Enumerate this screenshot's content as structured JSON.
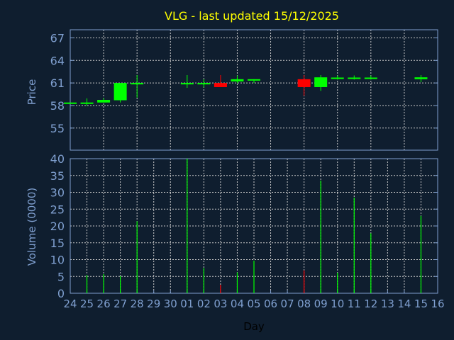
{
  "chart_data": {
    "type": "candlestick",
    "title": "VLG - last updated 15/12/2025",
    "xlabel": "Day",
    "x_tick_labels": [
      "24",
      "25",
      "26",
      "27",
      "28",
      "29",
      "30",
      "01",
      "02",
      "03",
      "04",
      "05",
      "06",
      "07",
      "08",
      "09",
      "10",
      "11",
      "12",
      "13",
      "14",
      "15",
      "16"
    ],
    "price_panel": {
      "ylabel": "Price",
      "ylim": [
        52.06,
        68.08
      ],
      "yticks": [
        55,
        58,
        61,
        64,
        67
      ],
      "grid": true,
      "candles": [
        {
          "day": "24",
          "open": 58.4,
          "high": 58.4,
          "low": 58.4,
          "close": 58.4
        },
        {
          "day": "25",
          "open": 58.4,
          "high": 58.95,
          "low": 57.95,
          "close": 58.4
        },
        {
          "day": "26",
          "open": 58.4,
          "high": 59.0,
          "low": 58.4,
          "close": 58.75
        },
        {
          "day": "27",
          "open": 58.7,
          "high": 61.0,
          "low": 58.4,
          "close": 61.0
        },
        {
          "day": "28",
          "open": 60.95,
          "high": 62.05,
          "low": 59.05,
          "close": 61.0
        },
        {
          "day": "01",
          "open": 60.95,
          "high": 62.05,
          "low": 60.35,
          "close": 61.0
        },
        {
          "day": "02",
          "open": 60.95,
          "high": 61.5,
          "low": 60.4,
          "close": 61.0
        },
        {
          "day": "03",
          "open": 61.0,
          "high": 62.05,
          "low": 60.45,
          "close": 60.45
        },
        {
          "day": "04",
          "open": 61.2,
          "high": 62.0,
          "low": 61.0,
          "close": 61.5
        },
        {
          "day": "05",
          "open": 61.45,
          "high": 61.5,
          "low": 61.0,
          "close": 61.5
        },
        {
          "day": "08",
          "open": 61.5,
          "high": 62.05,
          "low": 59.3,
          "close": 60.45
        },
        {
          "day": "09",
          "open": 60.45,
          "high": 62.05,
          "low": 59.95,
          "close": 61.75
        },
        {
          "day": "10",
          "open": 61.68,
          "high": 62.0,
          "low": 61.45,
          "close": 61.72
        },
        {
          "day": "11",
          "open": 61.68,
          "high": 62.0,
          "low": 61.45,
          "close": 61.72
        },
        {
          "day": "12",
          "open": 61.68,
          "high": 62.0,
          "low": 61.45,
          "close": 61.72
        },
        {
          "day": "15",
          "open": 61.5,
          "high": 62.05,
          "low": 61.1,
          "close": 61.75
        }
      ]
    },
    "volume_panel": {
      "ylabel": "Volume (0000)",
      "ylim": [
        0,
        40
      ],
      "yticks": [
        0,
        5,
        10,
        15,
        20,
        25,
        30,
        35,
        40
      ],
      "grid": true,
      "bars": [
        {
          "day": "25",
          "value": 5.4,
          "direction": "up"
        },
        {
          "day": "26",
          "value": 5.7,
          "direction": "up"
        },
        {
          "day": "27",
          "value": 5.1,
          "direction": "up"
        },
        {
          "day": "28",
          "value": 21.4,
          "direction": "up"
        },
        {
          "day": "01",
          "value": 40,
          "direction": "up"
        },
        {
          "day": "02",
          "value": 7.5,
          "direction": "up"
        },
        {
          "day": "03",
          "value": 2.5,
          "direction": "down"
        },
        {
          "day": "04",
          "value": 6.2,
          "direction": "up"
        },
        {
          "day": "05",
          "value": 9.7,
          "direction": "up"
        },
        {
          "day": "08",
          "value": 6.8,
          "direction": "down"
        },
        {
          "day": "09",
          "value": 33.5,
          "direction": "up"
        },
        {
          "day": "10",
          "value": 6.1,
          "direction": "up"
        },
        {
          "day": "11",
          "value": 28.4,
          "direction": "up"
        },
        {
          "day": "12",
          "value": 17.8,
          "direction": "up"
        },
        {
          "day": "15",
          "value": 23,
          "direction": "up"
        }
      ]
    },
    "colors": {
      "background": "#0f1e2f",
      "up": "#00ff00",
      "down": "#ff0000",
      "title": "#ffff00",
      "axis": "#7f9fcf",
      "grid": "#c8c8c8",
      "xlabel": "#000000"
    }
  }
}
